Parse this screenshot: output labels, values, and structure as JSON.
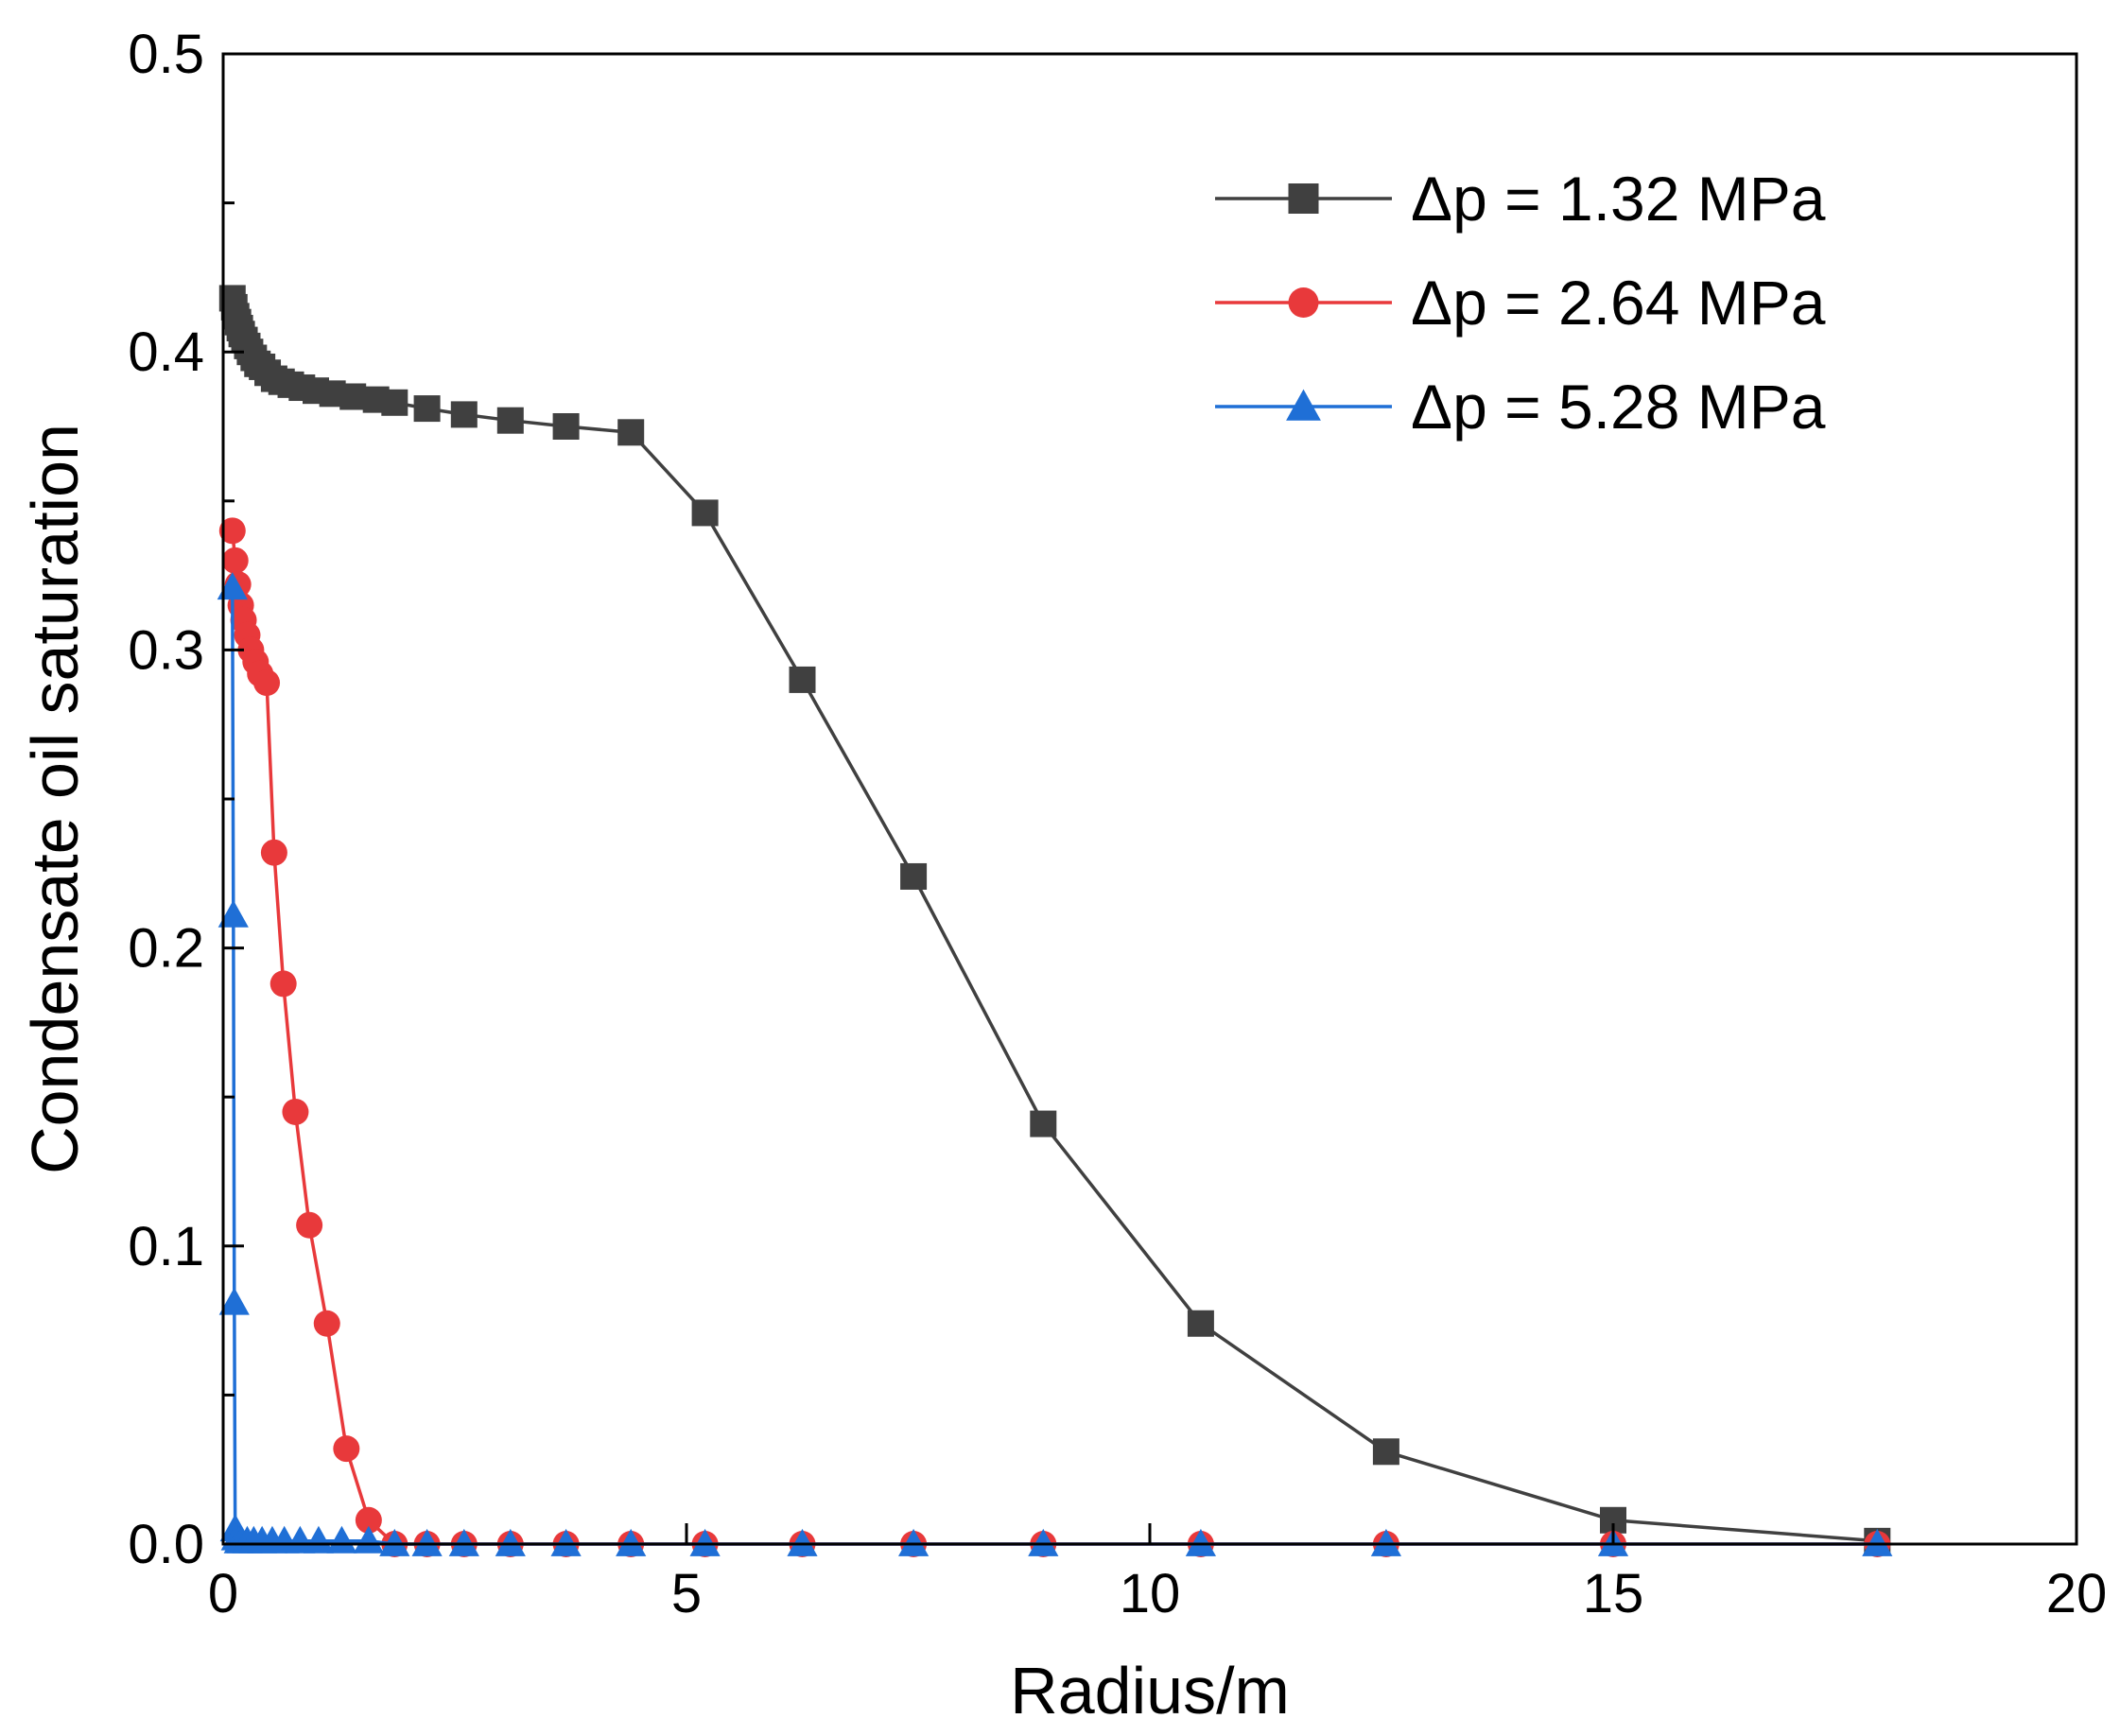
{
  "chart_data": {
    "type": "line",
    "title": "",
    "xlabel": "Radius/m",
    "ylabel": "Condensate oil saturation",
    "xlim": [
      0,
      20
    ],
    "ylim": [
      0,
      0.5
    ],
    "xticks": [
      0,
      5,
      10,
      15,
      20
    ],
    "yticks": [
      0.0,
      0.1,
      0.2,
      0.3,
      0.4,
      0.5
    ],
    "xtick_labels": [
      "0",
      "5",
      "10",
      "15",
      "20"
    ],
    "ytick_labels": [
      "0.0",
      "0.1",
      "0.2",
      "0.3",
      "0.4",
      "0.5"
    ],
    "legend_position": "top-right",
    "grid": false,
    "series": [
      {
        "name": "Δp = 1.32 MPa",
        "color": "#404040",
        "marker": "square",
        "x": [
          0.1,
          0.12,
          0.14,
          0.16,
          0.18,
          0.2,
          0.23,
          0.26,
          0.29,
          0.33,
          0.37,
          0.42,
          0.48,
          0.55,
          0.63,
          0.73,
          0.85,
          1.0,
          1.18,
          1.4,
          1.65,
          1.85,
          2.2,
          2.6,
          3.1,
          3.7,
          4.4,
          5.2,
          6.25,
          7.45,
          8.85,
          10.55,
          12.55,
          15.0,
          17.85
        ],
        "y": [
          0.418,
          0.415,
          0.412,
          0.41,
          0.408,
          0.406,
          0.404,
          0.402,
          0.4,
          0.398,
          0.396,
          0.395,
          0.393,
          0.391,
          0.39,
          0.389,
          0.388,
          0.387,
          0.386,
          0.385,
          0.384,
          0.383,
          0.381,
          0.379,
          0.377,
          0.375,
          0.373,
          0.346,
          0.29,
          0.224,
          0.141,
          0.074,
          0.031,
          0.008,
          0.001
        ]
      },
      {
        "name": "Δp = 2.64 MPa",
        "color": "#e8393b",
        "marker": "circle",
        "x": [
          0.1,
          0.13,
          0.16,
          0.19,
          0.22,
          0.26,
          0.3,
          0.35,
          0.4,
          0.47,
          0.55,
          0.65,
          0.78,
          0.93,
          1.12,
          1.33,
          1.57,
          1.85,
          2.2,
          2.6,
          3.1,
          3.7,
          4.4,
          5.2,
          6.25,
          7.45,
          8.85,
          10.55,
          12.55,
          15.0,
          17.85
        ],
        "y": [
          0.34,
          0.33,
          0.322,
          0.315,
          0.31,
          0.305,
          0.3,
          0.296,
          0.292,
          0.289,
          0.232,
          0.188,
          0.145,
          0.107,
          0.074,
          0.032,
          0.008,
          0.0,
          0.0,
          0.0,
          0.0,
          0.0,
          0.0,
          0.0,
          0.0,
          0.0,
          0.0,
          0.0,
          0.0,
          0.0,
          0.0
        ]
      },
      {
        "name": "Δp = 5.28 MPa",
        "color": "#1f6fd6",
        "marker": "triangle",
        "x": [
          0.1,
          0.11,
          0.12,
          0.13,
          0.14,
          0.17,
          0.2,
          0.26,
          0.33,
          0.42,
          0.53,
          0.66,
          0.83,
          1.03,
          1.28,
          1.57,
          1.85,
          2.2,
          2.6,
          3.1,
          3.7,
          4.4,
          5.2,
          6.25,
          7.45,
          8.85,
          10.55,
          12.55,
          15.0,
          17.85
        ],
        "y": [
          0.321,
          0.211,
          0.081,
          0.005,
          0.002,
          0.001,
          0.001,
          0.001,
          0.001,
          0.001,
          0.001,
          0.001,
          0.001,
          0.001,
          0.001,
          0.001,
          0.0,
          0.0,
          0.0,
          0.0,
          0.0,
          0.0,
          0.0,
          0.0,
          0.0,
          0.0,
          0.0,
          0.0,
          0.0,
          0.0
        ]
      }
    ]
  }
}
